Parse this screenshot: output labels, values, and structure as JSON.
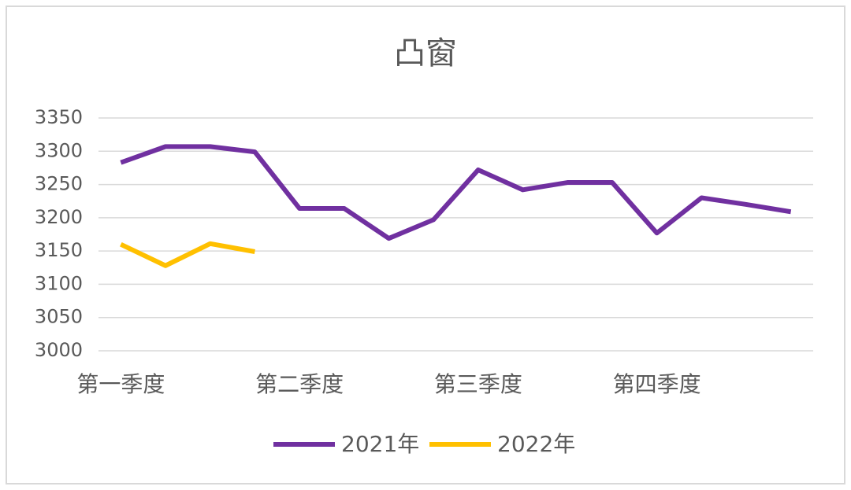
{
  "chart_data": {
    "type": "line",
    "title": "凸窗",
    "categories": [
      "第一季度",
      null,
      null,
      null,
      "第二季度",
      null,
      null,
      null,
      "第三季度",
      null,
      null,
      null,
      "第四季度",
      null,
      null,
      null
    ],
    "series": [
      {
        "name": "2021年",
        "color": "#7030a0",
        "values": [
          3283,
          3307,
          3307,
          3299,
          3214,
          3214,
          3169,
          3197,
          3272,
          3242,
          3253,
          3253,
          3177,
          3230,
          3220,
          3209
        ]
      },
      {
        "name": "2022年",
        "color": "#ffc000",
        "values": [
          3160,
          3128,
          3161,
          3149,
          null,
          null,
          null,
          null,
          null,
          null,
          null,
          null,
          null,
          null,
          null,
          null
        ]
      }
    ],
    "ylim": [
      3000,
      3350
    ],
    "yticks": [
      3000,
      3050,
      3100,
      3150,
      3200,
      3250,
      3300,
      3350
    ],
    "grid": true,
    "legend": "bottom"
  }
}
